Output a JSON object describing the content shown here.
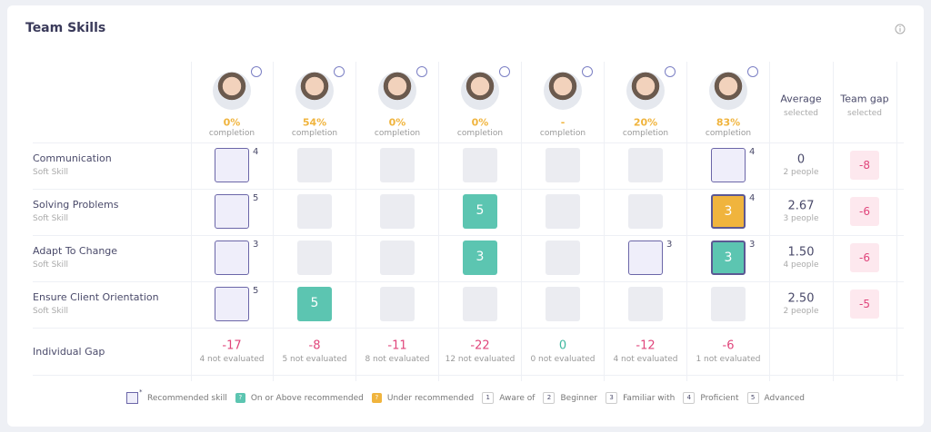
{
  "header": {
    "title": "Team Skills"
  },
  "members": [
    {
      "completion": "0%"
    },
    {
      "completion": "54%"
    },
    {
      "completion": "0%"
    },
    {
      "completion": "0%"
    },
    {
      "completion": "-"
    },
    {
      "completion": "20%"
    },
    {
      "completion": "83%"
    }
  ],
  "completion_label": "completion",
  "columns": {
    "average": {
      "title": "Average",
      "sub": "selected"
    },
    "gap": {
      "title": "Team gap",
      "sub": "selected"
    }
  },
  "skills": [
    {
      "name": "Communication",
      "type": "Soft Skill",
      "cells": [
        {
          "recommended": "4"
        },
        null,
        null,
        null,
        null,
        null,
        {
          "recommended": "4"
        }
      ],
      "average": "0",
      "people": "2 people",
      "gap": "-8"
    },
    {
      "name": "Solving Problems",
      "type": "Soft Skill",
      "cells": [
        {
          "recommended": "5"
        },
        null,
        null,
        {
          "score": "5",
          "color": "#5cc5b1"
        },
        null,
        null,
        {
          "score": "3",
          "color": "#f0b43d",
          "recommended": "4"
        }
      ],
      "average": "2.67",
      "people": "3 people",
      "gap": "-6"
    },
    {
      "name": "Adapt To Change",
      "type": "Soft Skill",
      "cells": [
        {
          "recommended": "3"
        },
        null,
        null,
        {
          "score": "3",
          "color": "#5cc5b1"
        },
        null,
        {
          "recommended": "3"
        },
        {
          "score": "3",
          "color": "#5cc5b1",
          "recommended": "3"
        }
      ],
      "average": "1.50",
      "people": "4 people",
      "gap": "-6"
    },
    {
      "name": "Ensure Client Orientation",
      "type": "Soft Skill",
      "cells": [
        {
          "recommended": "5"
        },
        {
          "score": "5",
          "color": "#5cc5b1"
        },
        null,
        null,
        null,
        null,
        null
      ],
      "average": "2.50",
      "people": "2 people",
      "gap": "-5"
    }
  ],
  "individual_gap": {
    "label": "Individual Gap",
    "values": [
      {
        "gap": "-17",
        "note": "4 not evaluated",
        "color": "#e0457b"
      },
      {
        "gap": "-8",
        "note": "5 not evaluated",
        "color": "#e0457b"
      },
      {
        "gap": "-11",
        "note": "8 not evaluated",
        "color": "#e0457b"
      },
      {
        "gap": "-22",
        "note": "12 not evaluated",
        "color": "#e0457b"
      },
      {
        "gap": "0",
        "note": "0 not evaluated",
        "color": "#3fb8a0"
      },
      {
        "gap": "-12",
        "note": "4 not evaluated",
        "color": "#e0457b"
      },
      {
        "gap": "-6",
        "note": "1 not evaluated",
        "color": "#e0457b"
      }
    ]
  },
  "legend": [
    {
      "symbol": "*",
      "label": "Recommended skill",
      "kind": "recommended"
    },
    {
      "symbol": "?",
      "label": "On or Above recommended",
      "color": "#5cc5b1"
    },
    {
      "symbol": "?",
      "label": "Under recommended",
      "color": "#f0b43d"
    },
    {
      "symbol": "1",
      "label": "Aware of"
    },
    {
      "symbol": "2",
      "label": "Beginner"
    },
    {
      "symbol": "3",
      "label": "Familiar with"
    },
    {
      "symbol": "4",
      "label": "Proficient"
    },
    {
      "symbol": "5",
      "label": "Advanced"
    }
  ]
}
